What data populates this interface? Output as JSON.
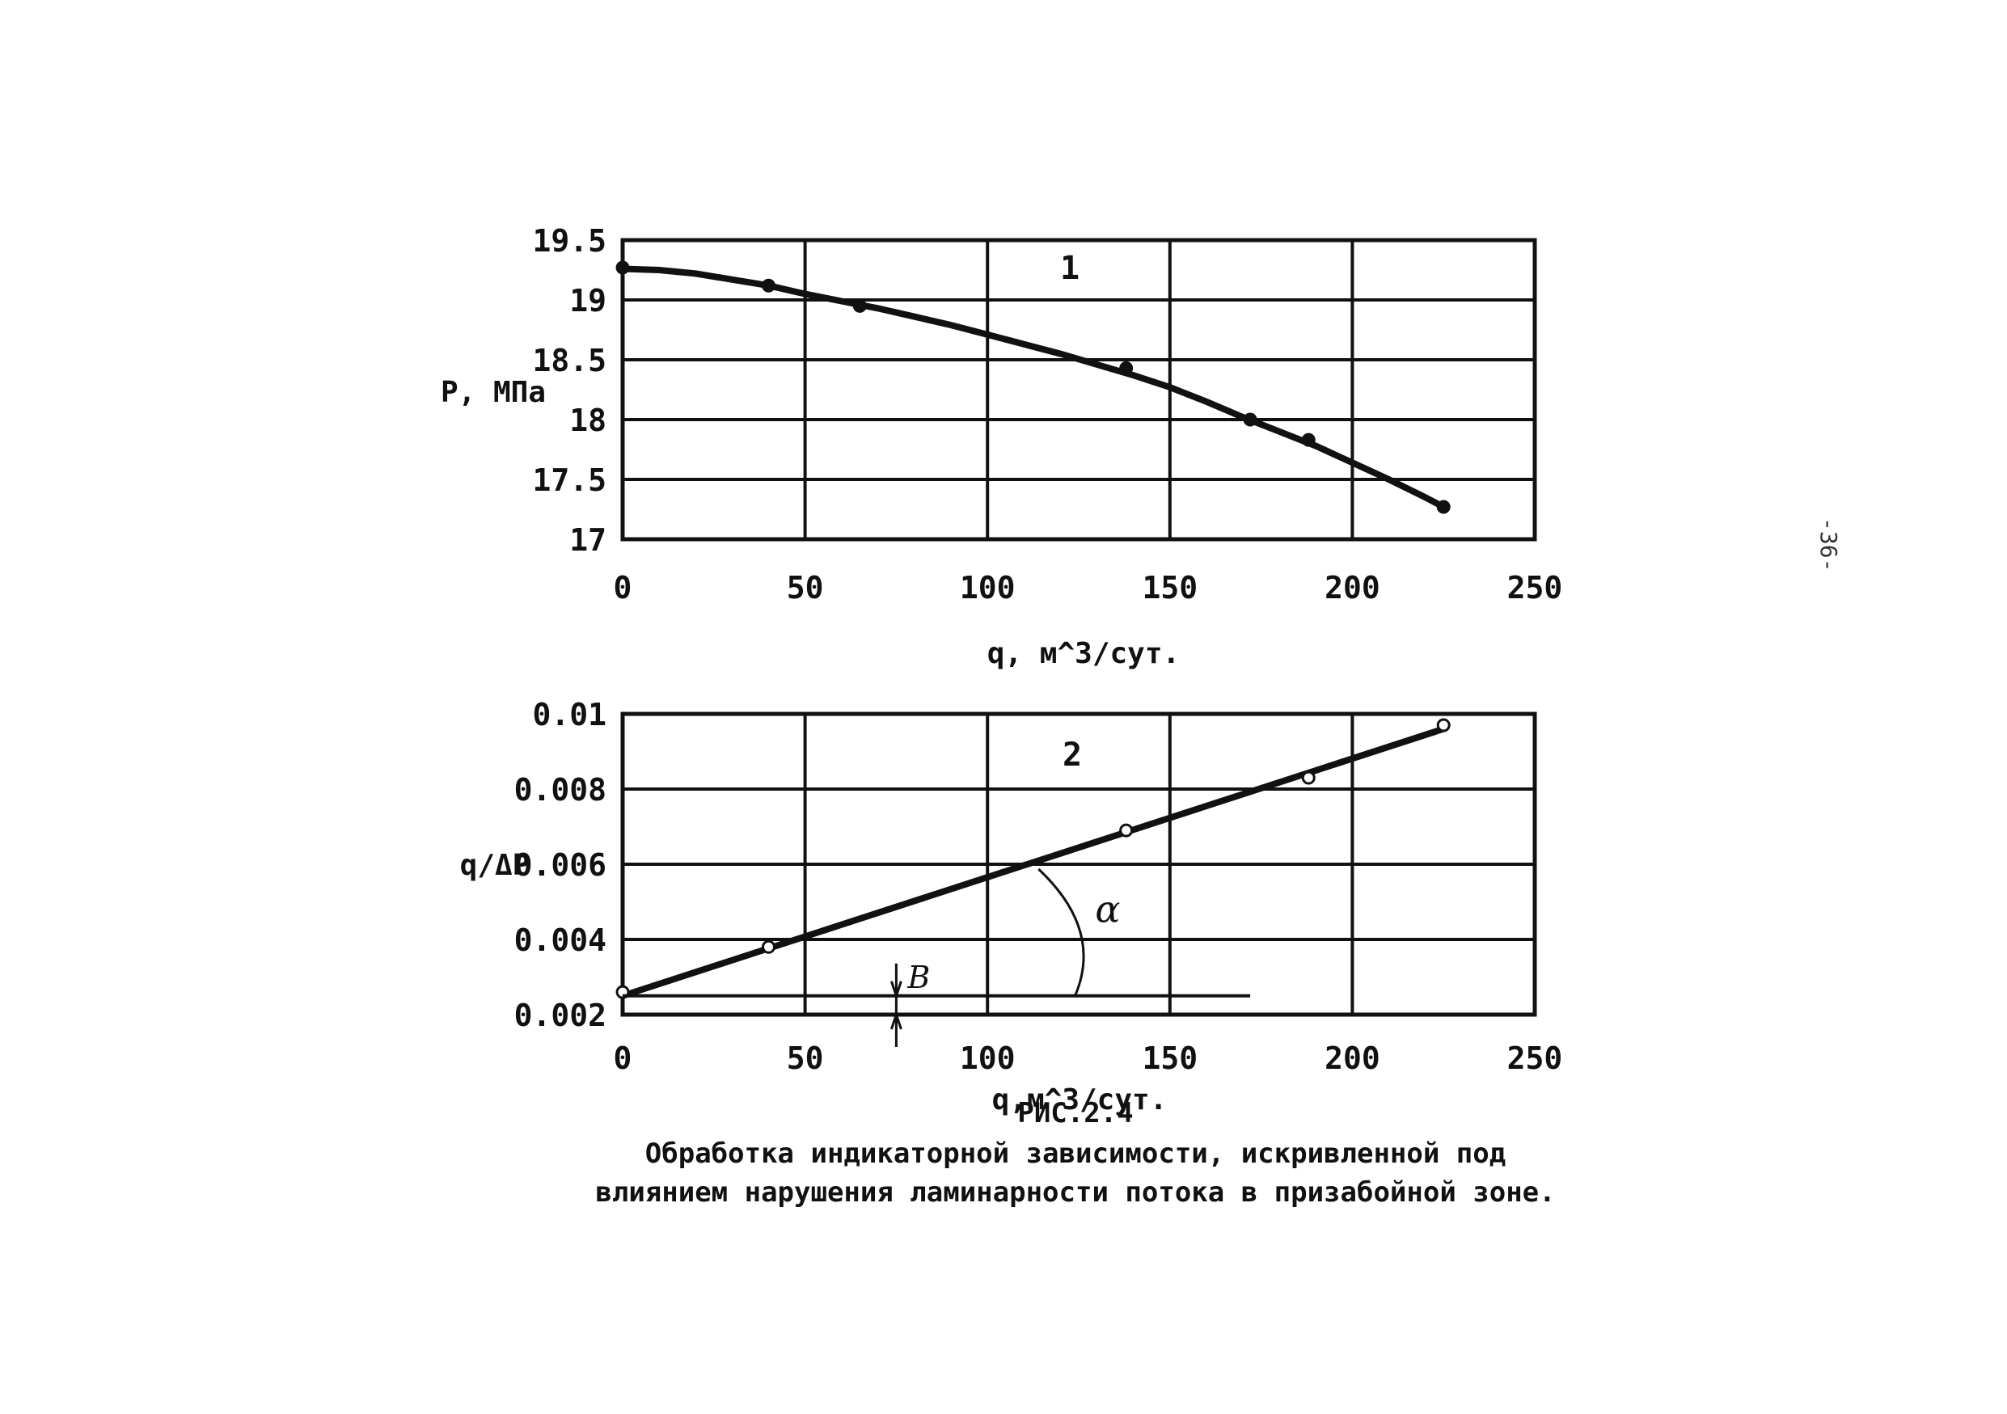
{
  "page_number": "-36-",
  "figure_label": "РИС.2.4",
  "caption_lines": [
    "Обработка индикаторной зависимости, искривленной под",
    "влиянием нарушения ламинарности потока в призабойной зоне."
  ],
  "chart_data": [
    {
      "type": "line",
      "panel_label": "1",
      "ylabel": "P, МПа",
      "xlabel": "q, м^3/сут.",
      "xlim": [
        0,
        250
      ],
      "ylim": [
        17,
        19.5
      ],
      "xticks": [
        "0",
        "50",
        "100",
        "150",
        "200",
        "250"
      ],
      "yticks": [
        "19.5",
        "19",
        "18.5",
        "18",
        "17.5",
        "17"
      ],
      "grid": true,
      "series": [
        {
          "points": [
            [
              0,
              19.27
            ],
            [
              40,
              19.12
            ],
            [
              65,
              18.95
            ],
            [
              138,
              18.43
            ],
            [
              172,
              18.0
            ],
            [
              188,
              17.83
            ],
            [
              225,
              17.27
            ]
          ],
          "curve": [
            [
              0,
              19.26
            ],
            [
              10,
              19.25
            ],
            [
              20,
              19.22
            ],
            [
              30,
              19.17
            ],
            [
              40,
              19.12
            ],
            [
              50,
              19.05
            ],
            [
              60,
              18.99
            ],
            [
              70,
              18.93
            ],
            [
              80,
              18.86
            ],
            [
              90,
              18.79
            ],
            [
              100,
              18.71
            ],
            [
              110,
              18.63
            ],
            [
              120,
              18.55
            ],
            [
              130,
              18.46
            ],
            [
              140,
              18.37
            ],
            [
              150,
              18.27
            ],
            [
              160,
              18.15
            ],
            [
              170,
              18.02
            ],
            [
              180,
              17.9
            ],
            [
              190,
              17.78
            ],
            [
              200,
              17.64
            ],
            [
              210,
              17.5
            ],
            [
              220,
              17.35
            ],
            [
              225,
              17.27
            ]
          ]
        }
      ]
    },
    {
      "type": "scatter",
      "panel_label": "2",
      "ylabel": "q/ΔP",
      "xlabel": "q,м^3/сут.",
      "xlim": [
        0,
        250
      ],
      "ylim": [
        0.002,
        0.01
      ],
      "xticks": [
        "0",
        "50",
        "100",
        "150",
        "200",
        "250"
      ],
      "yticks": [
        "0.01",
        "0.008",
        "0.006",
        "0.004",
        "0.002"
      ],
      "grid": true,
      "series": [
        {
          "points": [
            [
              0,
              0.0026
            ],
            [
              40,
              0.0038
            ],
            [
              138,
              0.0069
            ],
            [
              188,
              0.0083
            ],
            [
              225,
              0.0097
            ]
          ],
          "fit_line": [
            [
              0,
              0.0025
            ],
            [
              225,
              0.0096
            ]
          ]
        }
      ],
      "annotations": {
        "intercept_label": "B",
        "angle_label": "α",
        "baseline_y": 0.0025,
        "baseline_x_end": 172
      }
    }
  ]
}
